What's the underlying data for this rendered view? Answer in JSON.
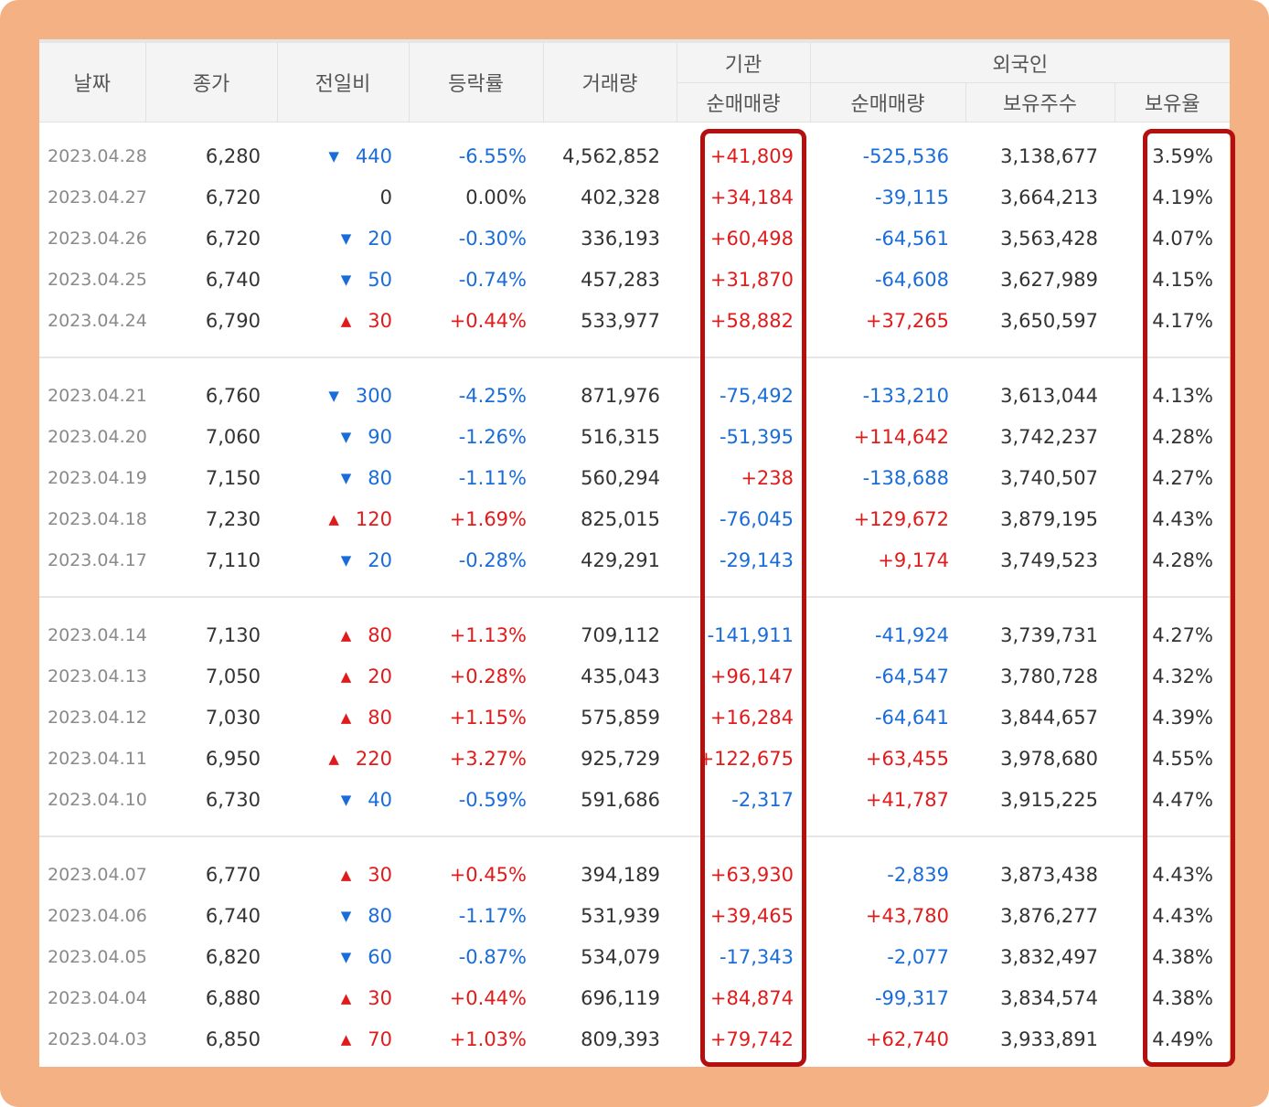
{
  "header": {
    "date": "날짜",
    "close": "종가",
    "change": "전일비",
    "rate": "등락률",
    "volume": "거래량",
    "institution": "기관",
    "inst_net": "순매매량",
    "foreign": "외국인",
    "foreign_net": "순매매량",
    "holdings": "보유주수",
    "holding_ratio": "보유율"
  },
  "colors": {
    "frame": "#f4b183",
    "highlight_border": "#b50f0f",
    "up": "#e11b1b",
    "down": "#1a6cd8"
  },
  "groups": [
    {
      "rows": [
        {
          "date": "2023.04.28",
          "close": "6,280",
          "dir": "down",
          "change": "440",
          "rate": "-6.55%",
          "volume": "4,562,852",
          "inst": "+41,809",
          "foreign": "-525,536",
          "holdings": "3,138,677",
          "ratio": "3.59%"
        },
        {
          "date": "2023.04.27",
          "close": "6,720",
          "dir": "none",
          "change": "0",
          "rate": "0.00%",
          "volume": "402,328",
          "inst": "+34,184",
          "foreign": "-39,115",
          "holdings": "3,664,213",
          "ratio": "4.19%"
        },
        {
          "date": "2023.04.26",
          "close": "6,720",
          "dir": "down",
          "change": "20",
          "rate": "-0.30%",
          "volume": "336,193",
          "inst": "+60,498",
          "foreign": "-64,561",
          "holdings": "3,563,428",
          "ratio": "4.07%"
        },
        {
          "date": "2023.04.25",
          "close": "6,740",
          "dir": "down",
          "change": "50",
          "rate": "-0.74%",
          "volume": "457,283",
          "inst": "+31,870",
          "foreign": "-64,608",
          "holdings": "3,627,989",
          "ratio": "4.15%"
        },
        {
          "date": "2023.04.24",
          "close": "6,790",
          "dir": "up",
          "change": "30",
          "rate": "+0.44%",
          "volume": "533,977",
          "inst": "+58,882",
          "foreign": "+37,265",
          "holdings": "3,650,597",
          "ratio": "4.17%"
        }
      ]
    },
    {
      "rows": [
        {
          "date": "2023.04.21",
          "close": "6,760",
          "dir": "down",
          "change": "300",
          "rate": "-4.25%",
          "volume": "871,976",
          "inst": "-75,492",
          "foreign": "-133,210",
          "holdings": "3,613,044",
          "ratio": "4.13%"
        },
        {
          "date": "2023.04.20",
          "close": "7,060",
          "dir": "down",
          "change": "90",
          "rate": "-1.26%",
          "volume": "516,315",
          "inst": "-51,395",
          "foreign": "+114,642",
          "holdings": "3,742,237",
          "ratio": "4.28%"
        },
        {
          "date": "2023.04.19",
          "close": "7,150",
          "dir": "down",
          "change": "80",
          "rate": "-1.11%",
          "volume": "560,294",
          "inst": "+238",
          "foreign": "-138,688",
          "holdings": "3,740,507",
          "ratio": "4.27%"
        },
        {
          "date": "2023.04.18",
          "close": "7,230",
          "dir": "up",
          "change": "120",
          "rate": "+1.69%",
          "volume": "825,015",
          "inst": "-76,045",
          "foreign": "+129,672",
          "holdings": "3,879,195",
          "ratio": "4.43%"
        },
        {
          "date": "2023.04.17",
          "close": "7,110",
          "dir": "down",
          "change": "20",
          "rate": "-0.28%",
          "volume": "429,291",
          "inst": "-29,143",
          "foreign": "+9,174",
          "holdings": "3,749,523",
          "ratio": "4.28%"
        }
      ]
    },
    {
      "rows": [
        {
          "date": "2023.04.14",
          "close": "7,130",
          "dir": "up",
          "change": "80",
          "rate": "+1.13%",
          "volume": "709,112",
          "inst": "-141,911",
          "foreign": "-41,924",
          "holdings": "3,739,731",
          "ratio": "4.27%"
        },
        {
          "date": "2023.04.13",
          "close": "7,050",
          "dir": "up",
          "change": "20",
          "rate": "+0.28%",
          "volume": "435,043",
          "inst": "+96,147",
          "foreign": "-64,547",
          "holdings": "3,780,728",
          "ratio": "4.32%"
        },
        {
          "date": "2023.04.12",
          "close": "7,030",
          "dir": "up",
          "change": "80",
          "rate": "+1.15%",
          "volume": "575,859",
          "inst": "+16,284",
          "foreign": "-64,641",
          "holdings": "3,844,657",
          "ratio": "4.39%"
        },
        {
          "date": "2023.04.11",
          "close": "6,950",
          "dir": "up",
          "change": "220",
          "rate": "+3.27%",
          "volume": "925,729",
          "inst": "+122,675",
          "foreign": "+63,455",
          "holdings": "3,978,680",
          "ratio": "4.55%"
        },
        {
          "date": "2023.04.10",
          "close": "6,730",
          "dir": "down",
          "change": "40",
          "rate": "-0.59%",
          "volume": "591,686",
          "inst": "-2,317",
          "foreign": "+41,787",
          "holdings": "3,915,225",
          "ratio": "4.47%"
        }
      ]
    },
    {
      "rows": [
        {
          "date": "2023.04.07",
          "close": "6,770",
          "dir": "up",
          "change": "30",
          "rate": "+0.45%",
          "volume": "394,189",
          "inst": "+63,930",
          "foreign": "-2,839",
          "holdings": "3,873,438",
          "ratio": "4.43%"
        },
        {
          "date": "2023.04.06",
          "close": "6,740",
          "dir": "down",
          "change": "80",
          "rate": "-1.17%",
          "volume": "531,939",
          "inst": "+39,465",
          "foreign": "+43,780",
          "holdings": "3,876,277",
          "ratio": "4.43%"
        },
        {
          "date": "2023.04.05",
          "close": "6,820",
          "dir": "down",
          "change": "60",
          "rate": "-0.87%",
          "volume": "534,079",
          "inst": "-17,343",
          "foreign": "-2,077",
          "holdings": "3,832,497",
          "ratio": "4.38%"
        },
        {
          "date": "2023.04.04",
          "close": "6,880",
          "dir": "up",
          "change": "30",
          "rate": "+0.44%",
          "volume": "696,119",
          "inst": "+84,874",
          "foreign": "-99,317",
          "holdings": "3,834,574",
          "ratio": "4.38%"
        },
        {
          "date": "2023.04.03",
          "close": "6,850",
          "dir": "up",
          "change": "70",
          "rate": "+1.03%",
          "volume": "809,393",
          "inst": "+79,742",
          "foreign": "+62,740",
          "holdings": "3,933,891",
          "ratio": "4.49%"
        }
      ]
    }
  ]
}
